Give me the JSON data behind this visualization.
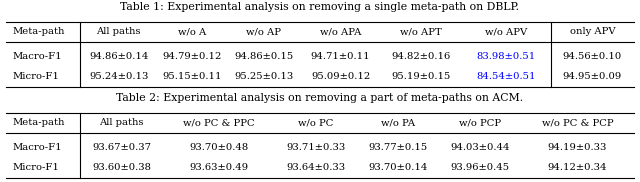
{
  "table1_title": "Table 1: Experimental analysis on removing a single meta-path on DBLP.",
  "table1_headers": [
    "Meta-path",
    "All paths",
    "w/o A",
    "w/o AP",
    "w/o APA",
    "w/o APT",
    "w/o APV",
    "only APV"
  ],
  "table1_rows": [
    [
      "Macro-F1",
      "94.86±0.14",
      "94.79±0.12",
      "94.86±0.15",
      "94.71±0.11",
      "94.82±0.16",
      "83.98±0.51",
      "94.56±0.10"
    ],
    [
      "Micro-F1",
      "95.24±0.13",
      "95.15±0.11",
      "95.25±0.13",
      "95.09±0.12",
      "95.19±0.15",
      "84.54±0.51",
      "94.95±0.09"
    ]
  ],
  "table1_highlight_col": 6,
  "table2_title": "Table 2: Experimental analysis on removing a part of meta-paths on ACM.",
  "table2_headers": [
    "Meta-path",
    "All paths",
    "w/o PC & PPC",
    "w/o PC",
    "w/o PA",
    "w/o PCP",
    "w/o PC & PCP"
  ],
  "table2_rows": [
    [
      "Macro-F1",
      "93.67±0.37",
      "93.70±0.48",
      "93.71±0.33",
      "93.77±0.15",
      "94.03±0.44",
      "94.19±0.33"
    ],
    [
      "Micro-F1",
      "93.60±0.38",
      "93.63±0.49",
      "93.64±0.33",
      "93.70±0.14",
      "93.96±0.45",
      "94.12±0.34"
    ]
  ],
  "highlight_color": "#0000FF",
  "normal_color": "#000000",
  "header_color": "#000000",
  "bg_color": "#FFFFFF",
  "fontsize": 7.2,
  "title_fontsize": 7.8
}
